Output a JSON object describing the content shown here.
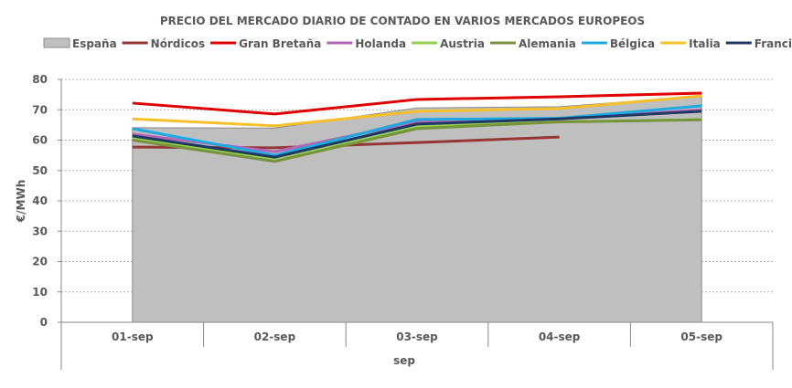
{
  "chart_data": {
    "type": "line",
    "title": "PRECIO DEL MERCADO DIARIO DE CONTADO EN VARIOS MERCADOS EUROPEOS",
    "xlabel": "sep",
    "ylabel": "€/MWh",
    "ylim": [
      0,
      80
    ],
    "yticks": [
      0,
      10,
      20,
      30,
      40,
      50,
      60,
      70,
      80
    ],
    "grid": true,
    "legend": "top",
    "categories": [
      "01-sep",
      "02-sep",
      "03-sep",
      "04-sep",
      "05-sep"
    ],
    "series": [
      {
        "name": "España",
        "kind": "area",
        "color": "#bfbfbf",
        "values": [
          64.1,
          64.0,
          70.6,
          71.0,
          74.5
        ]
      },
      {
        "name": "Nórdicos",
        "color": "#953735",
        "values": [
          57.7,
          57.5,
          59.2,
          61.0,
          null
        ]
      },
      {
        "name": "Gran Bretaña",
        "color": "#e00000",
        "values": [
          72.2,
          68.6,
          73.4,
          74.3,
          75.5
        ]
      },
      {
        "name": "Holanda",
        "color": "#b565b5",
        "values": [
          62.0,
          56.2,
          66.0,
          67.0,
          70.0
        ]
      },
      {
        "name": "Austria",
        "color": "#92d050",
        "values": [
          60.5,
          54.0,
          64.7,
          66.0,
          66.8
        ]
      },
      {
        "name": "Alemania",
        "color": "#77933c",
        "values": [
          60.0,
          53.0,
          63.8,
          66.0,
          66.7
        ]
      },
      {
        "name": "Bélgica",
        "color": "#1fa9e1",
        "values": [
          63.8,
          55.0,
          66.8,
          67.2,
          71.3
        ]
      },
      {
        "name": "Italia",
        "color": "#f5c02a",
        "values": [
          67.0,
          64.7,
          69.5,
          70.4,
          74.6
        ]
      },
      {
        "name": "Francia",
        "color": "#1f3864",
        "values": [
          61.4,
          54.4,
          65.3,
          67.0,
          69.5
        ]
      }
    ]
  }
}
